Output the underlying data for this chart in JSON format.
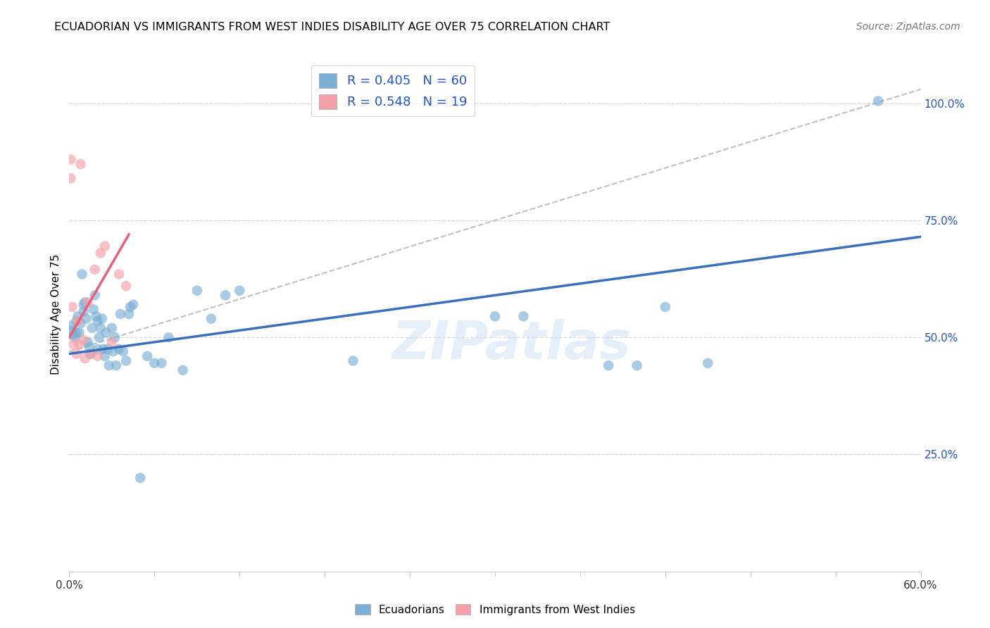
{
  "title": "ECUADORIAN VS IMMIGRANTS FROM WEST INDIES DISABILITY AGE OVER 75 CORRELATION CHART",
  "source": "Source: ZipAtlas.com",
  "ylabel": "Disability Age Over 75",
  "xlim": [
    0.0,
    0.6
  ],
  "ylim": [
    0.0,
    1.1
  ],
  "blue_color": "#7BAFD4",
  "pink_color": "#F4A0A8",
  "blue_line_color": "#3A6FBF",
  "pink_line_color": "#E8607A",
  "dashed_line_color": "#C0C0C0",
  "legend_text_color": "#2255CC",
  "grid_color": "#D8D8D8",
  "watermark": "ZIPatlas",
  "R_blue": 0.405,
  "N_blue": 60,
  "R_pink": 0.548,
  "N_pink": 19,
  "blue_x": [
    0.001,
    0.002,
    0.003,
    0.004,
    0.005,
    0.005,
    0.006,
    0.007,
    0.008,
    0.009,
    0.01,
    0.01,
    0.011,
    0.012,
    0.013,
    0.014,
    0.015,
    0.016,
    0.017,
    0.018,
    0.019,
    0.02,
    0.02,
    0.021,
    0.022,
    0.023,
    0.024,
    0.025,
    0.026,
    0.027,
    0.028,
    0.03,
    0.031,
    0.032,
    0.033,
    0.035,
    0.036,
    0.038,
    0.04,
    0.042,
    0.043,
    0.045,
    0.05,
    0.055,
    0.06,
    0.065,
    0.07,
    0.08,
    0.09,
    0.1,
    0.11,
    0.12,
    0.2,
    0.3,
    0.32,
    0.38,
    0.4,
    0.42,
    0.45,
    0.57
  ],
  "blue_y": [
    0.525,
    0.515,
    0.505,
    0.5,
    0.51,
    0.535,
    0.545,
    0.51,
    0.53,
    0.635,
    0.555,
    0.57,
    0.575,
    0.54,
    0.49,
    0.48,
    0.465,
    0.52,
    0.56,
    0.59,
    0.545,
    0.535,
    0.475,
    0.5,
    0.52,
    0.54,
    0.475,
    0.46,
    0.51,
    0.475,
    0.44,
    0.52,
    0.47,
    0.5,
    0.44,
    0.475,
    0.55,
    0.47,
    0.45,
    0.55,
    0.565,
    0.57,
    0.2,
    0.46,
    0.445,
    0.445,
    0.5,
    0.43,
    0.6,
    0.54,
    0.59,
    0.6,
    0.45,
    0.545,
    0.545,
    0.44,
    0.44,
    0.565,
    0.445,
    1.005
  ],
  "pink_x": [
    0.001,
    0.001,
    0.002,
    0.003,
    0.005,
    0.006,
    0.007,
    0.008,
    0.01,
    0.011,
    0.013,
    0.015,
    0.018,
    0.02,
    0.022,
    0.025,
    0.03,
    0.035,
    0.04
  ],
  "pink_y": [
    0.88,
    0.84,
    0.565,
    0.485,
    0.465,
    0.535,
    0.485,
    0.87,
    0.495,
    0.455,
    0.575,
    0.465,
    0.645,
    0.46,
    0.68,
    0.695,
    0.49,
    0.635,
    0.61
  ],
  "blue_trend_x": [
    0.0,
    0.6
  ],
  "blue_trend_y": [
    0.465,
    0.715
  ],
  "pink_trend_x": [
    0.0,
    0.042
  ],
  "pink_trend_y": [
    0.5,
    0.72
  ],
  "dash_trend_x": [
    0.0,
    0.6
  ],
  "dash_trend_y": [
    0.47,
    1.03
  ]
}
